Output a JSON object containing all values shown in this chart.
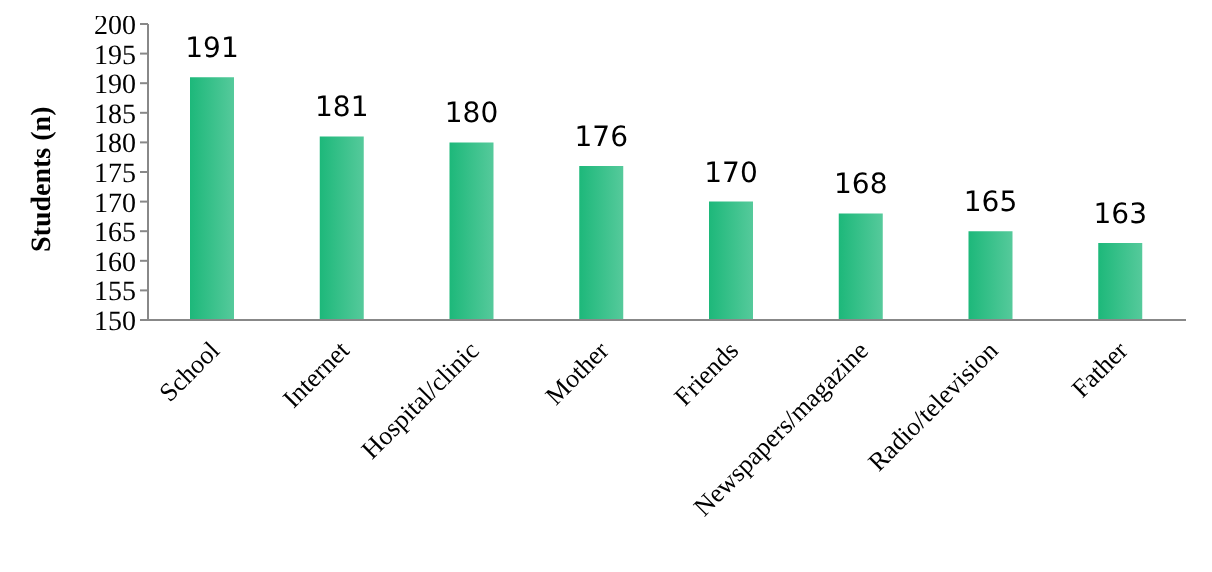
{
  "chart_data": {
    "type": "bar",
    "ylabel": "Students (n)",
    "categories": [
      "School",
      "Internet",
      "Hospital/clinic",
      "Mother",
      "Friends",
      "Newspapers/magazine",
      "Radio/television",
      "Father"
    ],
    "values": [
      191,
      181,
      180,
      176,
      170,
      168,
      165,
      163
    ],
    "color": "#1db87a",
    "ylim": [
      150,
      200
    ],
    "yticks": [
      150,
      155,
      160,
      165,
      170,
      175,
      180,
      185,
      190,
      195,
      200
    ],
    "data_labels": true,
    "grid": false
  }
}
